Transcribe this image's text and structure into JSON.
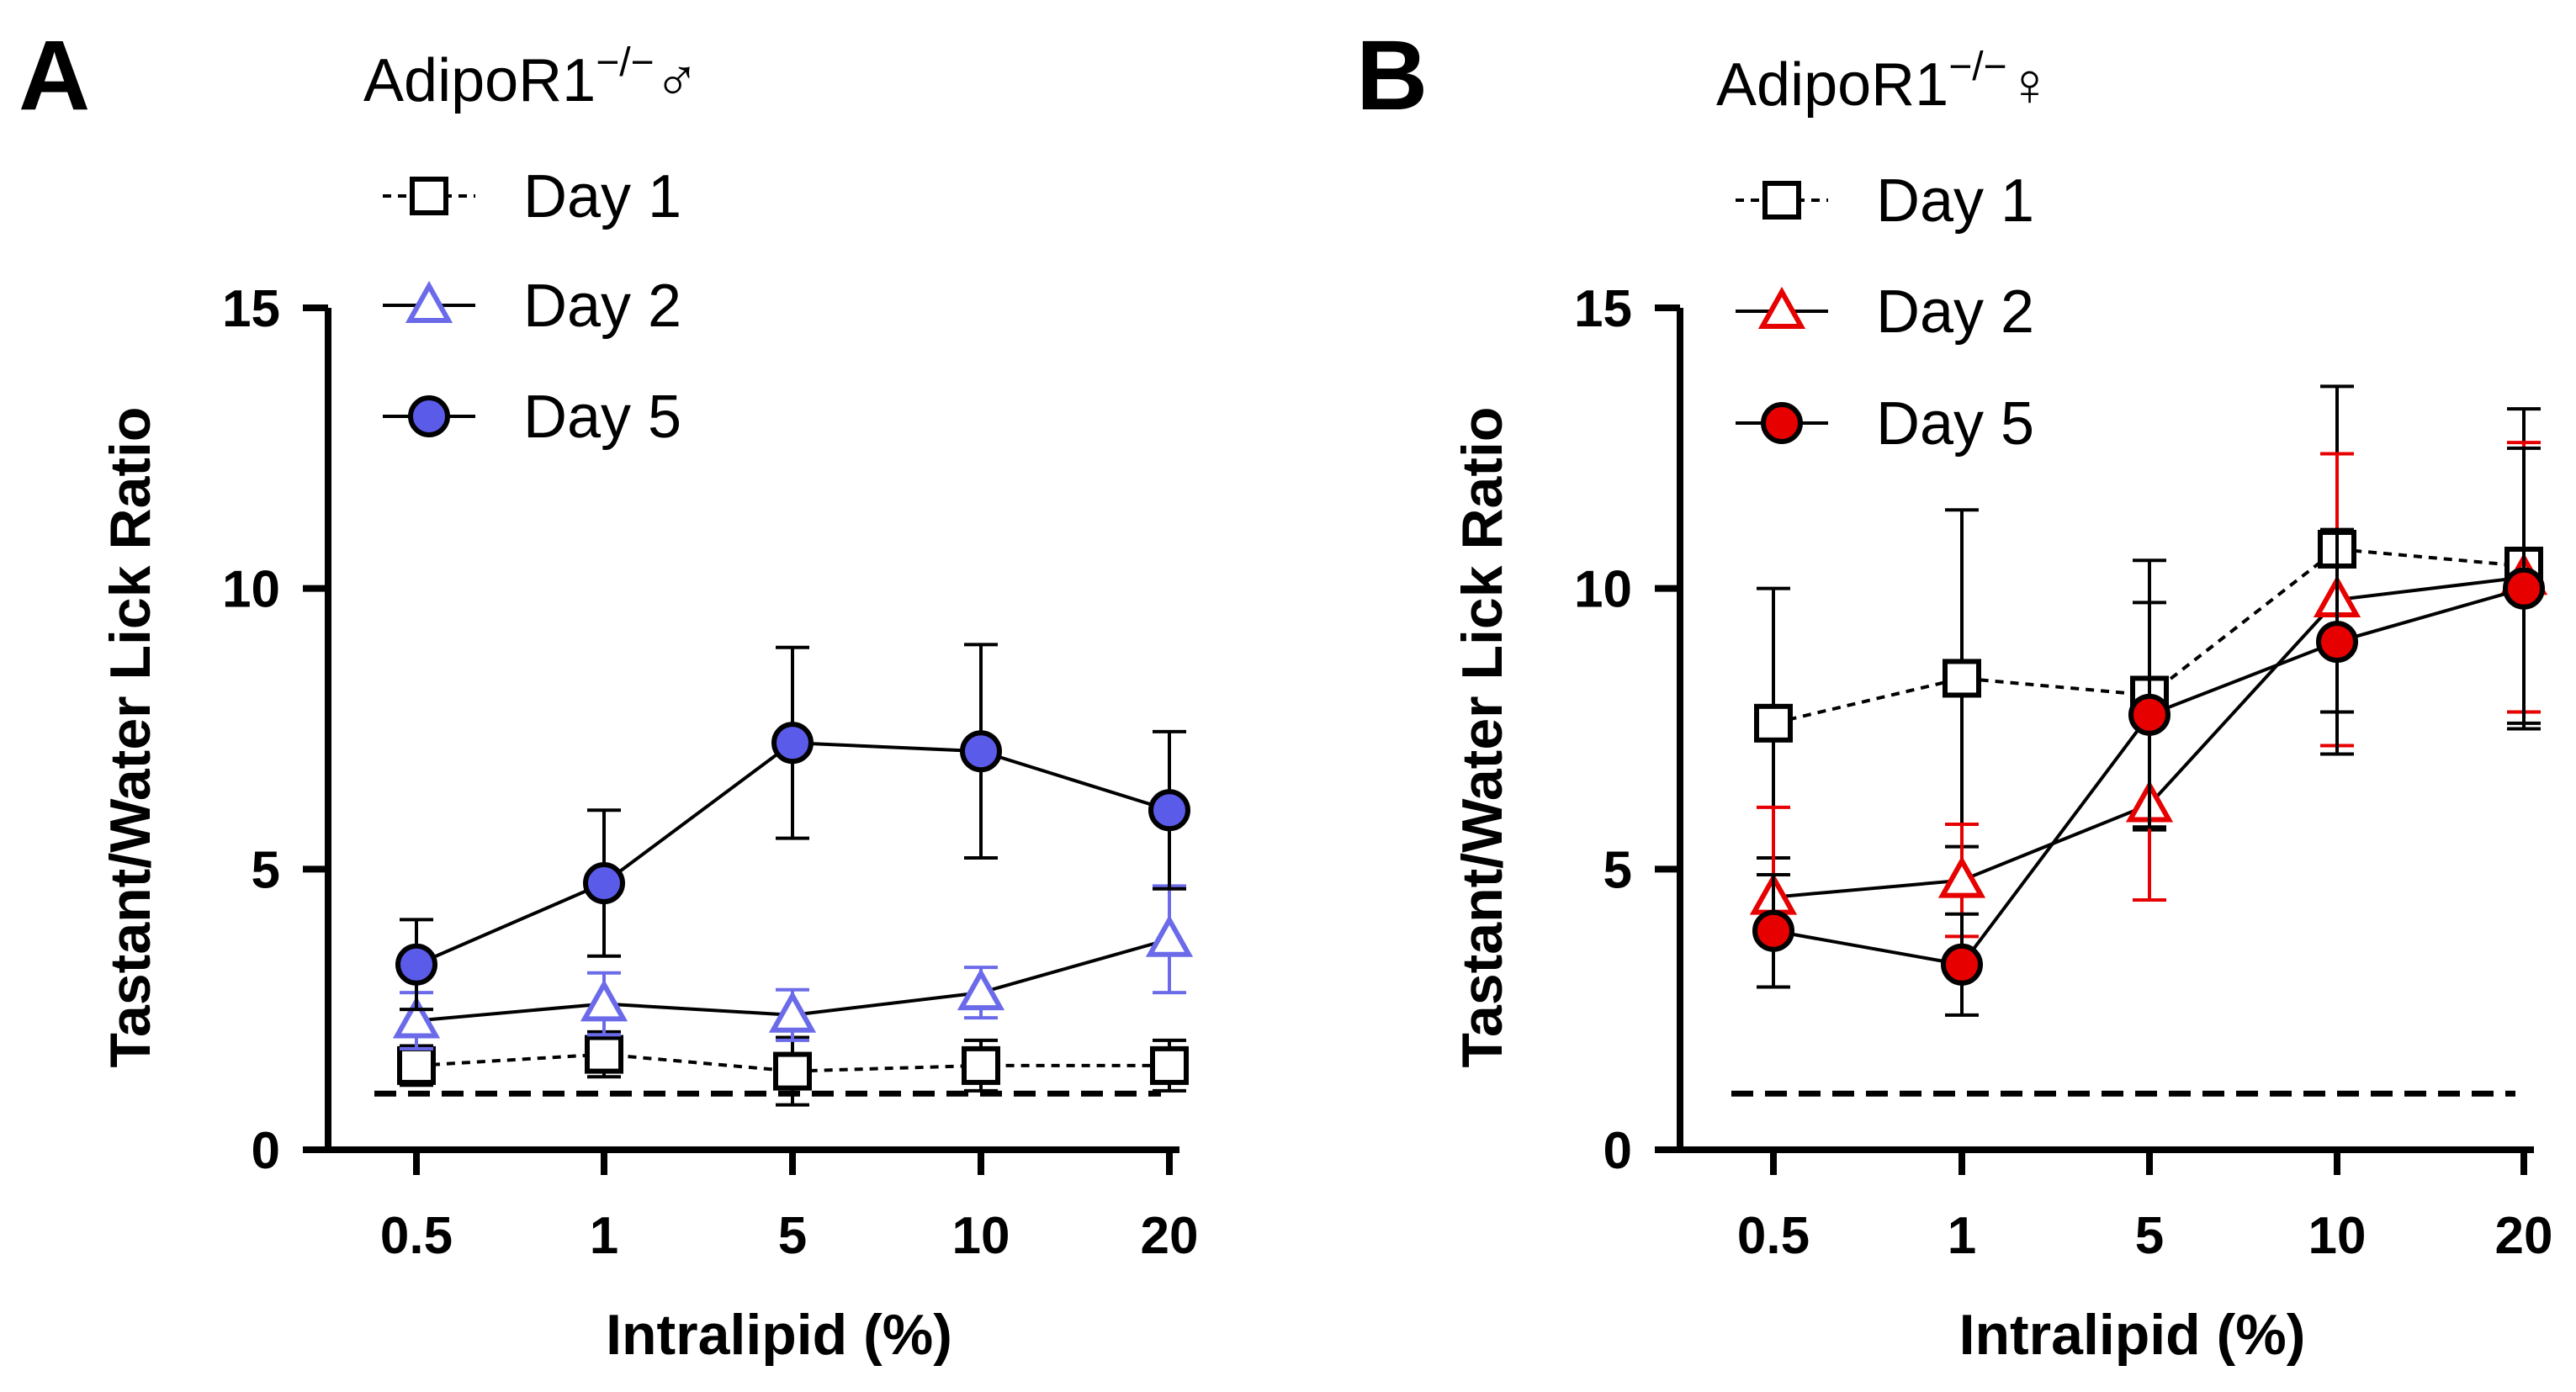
{
  "chart_data": [
    {
      "panel": "A",
      "type": "line",
      "title_base": "AdipoR1",
      "title_superscript": "−/−",
      "title_symbol": "♂",
      "xlabel": "Intralipid (%)",
      "ylabel": "Tastant/Water Lick Ratio",
      "categories": [
        "0.5",
        "1",
        "5",
        "10",
        "20"
      ],
      "ylim": [
        0,
        15
      ],
      "yticks": [
        0,
        5,
        10,
        15
      ],
      "reference_line": 1,
      "legend_position": "top-left",
      "series": [
        {
          "name": "Day 1",
          "marker": "square",
          "dashed": true,
          "color": "#000000",
          "fill": "#ffffff",
          "values": [
            1.5,
            1.7,
            1.4,
            1.5,
            1.5
          ],
          "errors": [
            0.35,
            0.4,
            0.6,
            0.45,
            0.45
          ]
        },
        {
          "name": "Day 2",
          "marker": "triangle",
          "dashed": false,
          "color": "#6b6bea",
          "fill": "#ffffff",
          "values": [
            2.3,
            2.6,
            2.4,
            2.8,
            3.75
          ],
          "errors": [
            0.5,
            0.55,
            0.45,
            0.45,
            0.95
          ]
        },
        {
          "name": "Day 5",
          "marker": "circle",
          "dashed": false,
          "color": "#000000",
          "fill": "#5b5bea",
          "values": [
            3.3,
            4.75,
            7.25,
            7.1,
            6.05
          ],
          "errors": [
            0.8,
            1.3,
            1.7,
            1.9,
            1.4
          ]
        }
      ]
    },
    {
      "panel": "B",
      "type": "line",
      "title_base": "AdipoR1",
      "title_superscript": "−/−",
      "title_symbol": "♀",
      "xlabel": "Intralipid (%)",
      "ylabel": "Tastant/Water Lick Ratio",
      "categories": [
        "0.5",
        "1",
        "5",
        "10",
        "20"
      ],
      "ylim": [
        0,
        15
      ],
      "yticks": [
        0,
        5,
        10,
        15
      ],
      "reference_line": 1,
      "legend_position": "top-left",
      "series": [
        {
          "name": "Day 1",
          "marker": "square",
          "dashed": true,
          "color": "#000000",
          "fill": "#ffffff",
          "values": [
            7.6,
            8.4,
            8.1,
            10.7,
            10.4
          ],
          "errors": [
            2.4,
            3.0,
            2.4,
            2.9,
            2.8
          ]
        },
        {
          "name": "Day 2",
          "marker": "triangle",
          "dashed": false,
          "color": "#e60000",
          "fill": "#ffffff",
          "values": [
            4.5,
            4.8,
            6.15,
            9.8,
            10.2
          ],
          "errors": [
            1.6,
            1.0,
            1.7,
            2.6,
            2.4
          ]
        },
        {
          "name": "Day 5",
          "marker": "circle",
          "dashed": false,
          "color": "#000000",
          "fill": "#e60000",
          "values": [
            3.9,
            3.3,
            7.75,
            9.05,
            10.0
          ],
          "errors": [
            1.0,
            0.9,
            2.0,
            2.0,
            2.5
          ]
        }
      ]
    }
  ]
}
